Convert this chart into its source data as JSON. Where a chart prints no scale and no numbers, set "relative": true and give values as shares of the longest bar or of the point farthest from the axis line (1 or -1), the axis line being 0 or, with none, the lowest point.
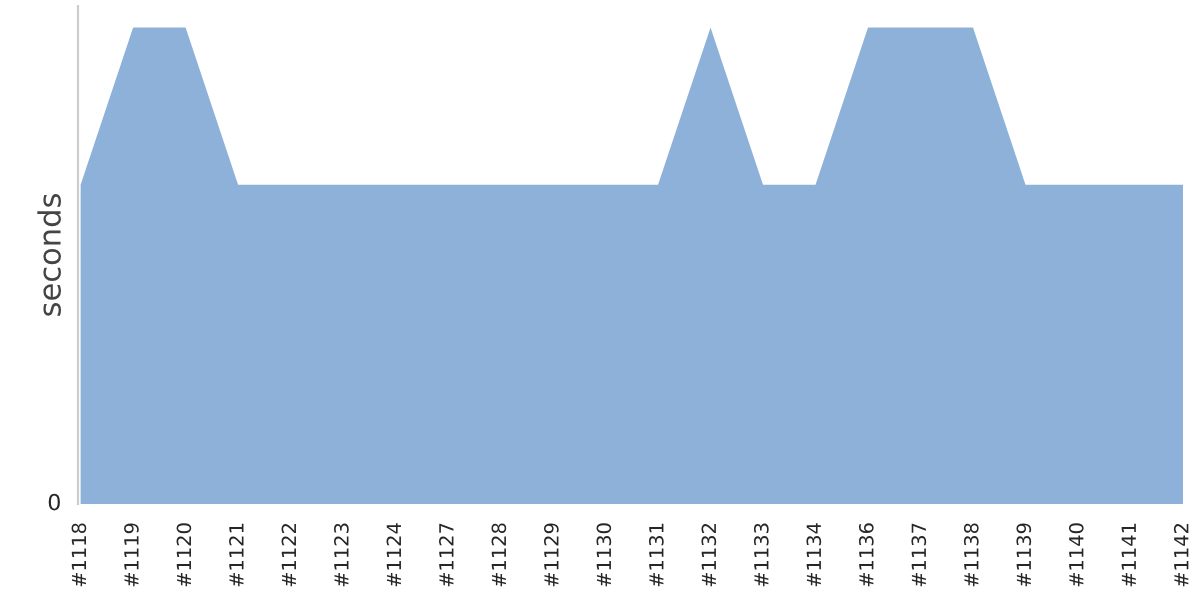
{
  "chart_data": {
    "type": "area",
    "ylabel": "seconds",
    "relative": true,
    "annotations": [
      "0"
    ],
    "categories": [
      "#1118",
      "#1119",
      "#1120",
      "#1121",
      "#1122",
      "#1123",
      "#1124",
      "#1127",
      "#1128",
      "#1129",
      "#1130",
      "#1131",
      "#1132",
      "#1133",
      "#1134",
      "#1136",
      "#1137",
      "#1138",
      "#1139",
      "#1140",
      "#1141",
      "#1142"
    ],
    "series": [
      {
        "color": "#8eb1da",
        "values": [
          0.67,
          1,
          1,
          0.67,
          0.67,
          0.67,
          0.67,
          0.67,
          0.67,
          0.67,
          0.67,
          0.67,
          1,
          0.67,
          0.67,
          1,
          1,
          1,
          0.67,
          0.67,
          0.67,
          0.67
        ]
      }
    ]
  }
}
